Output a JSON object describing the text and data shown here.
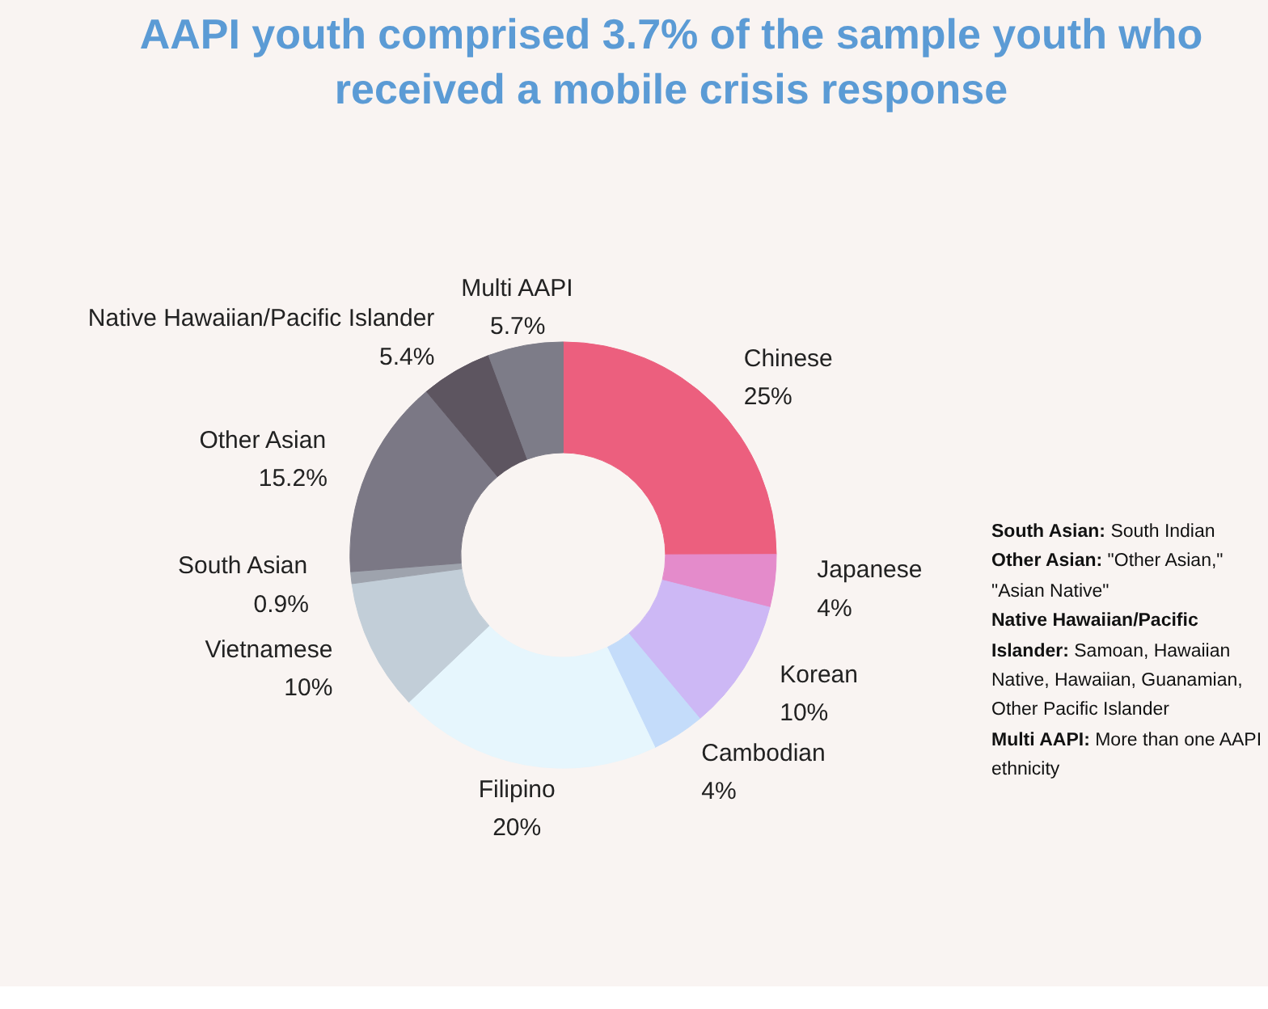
{
  "chart_data": {
    "type": "donut",
    "title": "AAPI youth comprised 3.7% of the sample youth who received a mobile crisis response",
    "categories": [
      "Chinese",
      "Japanese",
      "Korean",
      "Cambodian",
      "Filipino",
      "Vietnamese",
      "South Asian",
      "Other Asian",
      "Native Hawaiian/Pacific Islander",
      "Multi AAPI"
    ],
    "values": [
      25,
      4,
      10,
      4,
      20,
      10,
      0.9,
      15.2,
      5.4,
      5.7
    ],
    "value_labels": [
      "25%",
      "4%",
      "10%",
      "4%",
      "20%",
      "10%",
      "0.9%",
      "15.2%",
      "5.4%",
      "5.7%"
    ],
    "colors": [
      "#ec5f7e",
      "#e48bcb",
      "#cdb8f5",
      "#c4dcfa",
      "#e6f6fd",
      "#c2ced8",
      "#9ea3ad",
      "#7b7885",
      "#5d5560",
      "#7d7c88"
    ],
    "annotations": [
      "South Asian: South Indian",
      "Other Asian: \"Other Asian,\" \"Asian Native\"",
      "Native Hawaiian/Pacific Islander: Samoan, Hawaiian Native, Hawaiian, Guanamian, Other Pacific Islander",
      "Multi AAPI: More than one AAPI ethnicity"
    ]
  }
}
